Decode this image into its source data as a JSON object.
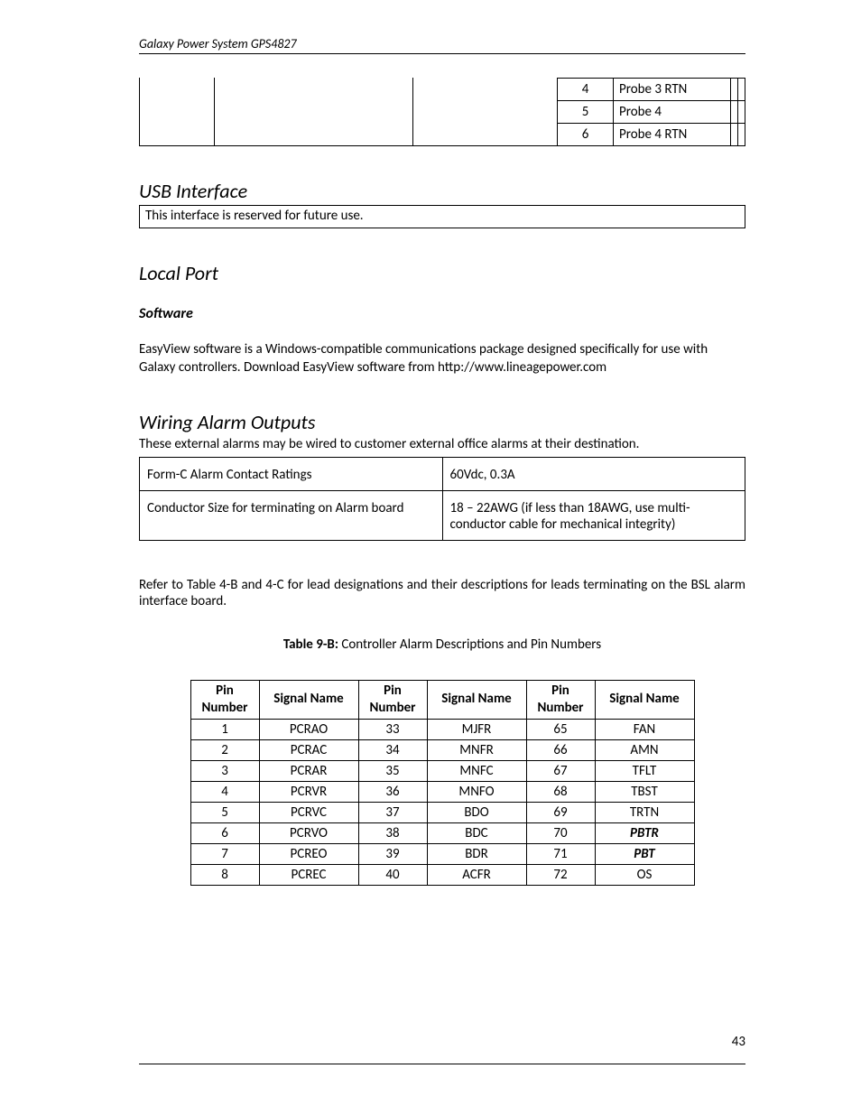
{
  "header": {
    "title": "Galaxy Power System GPS4827"
  },
  "page_number": "43",
  "probe_table": {
    "rows": [
      {
        "num": "4",
        "label": "Probe 3 RTN"
      },
      {
        "num": "5",
        "label": "Probe 4"
      },
      {
        "num": "6",
        "label": "Probe 4 RTN"
      }
    ]
  },
  "usb": {
    "heading": "USB Interface",
    "text": "This interface is reserved for future use."
  },
  "local_port": {
    "heading": "Local Port",
    "subheading": "Software",
    "body": "EasyView software is a Windows-compatible communications package designed specifically for use with Galaxy controllers. Download EasyView software from http://www.lineagepower.com"
  },
  "wiring": {
    "heading": "Wiring Alarm Outputs",
    "intro": "These external alarms may be wired to customer external office alarms at their destination.",
    "ratings": {
      "rows": [
        {
          "label": "Form-C Alarm Contact Ratings",
          "value": "60Vdc, 0.3A"
        },
        {
          "label": "Conductor Size for terminating on Alarm board",
          "value": "18 – 22AWG (if less than 18AWG, use multi-conductor cable for mechanical integrity)"
        }
      ]
    },
    "refer": "Refer to Table 4-B and 4-C for lead designations and their descriptions for leads terminating on the BSL alarm interface board."
  },
  "caption": {
    "bold": "Table 9-B:",
    "rest": " Controller Alarm Descriptions and Pin Numbers"
  },
  "pin_table": {
    "headers": [
      "Pin Number",
      "Signal Name",
      "Pin Number",
      "Signal Name",
      "Pin Number",
      "Signal Name"
    ],
    "rows": [
      [
        "1",
        "PCRAO",
        "33",
        "MJFR",
        "65",
        "FAN",
        false
      ],
      [
        "2",
        "PCRAC",
        "34",
        "MNFR",
        "66",
        "AMN",
        false
      ],
      [
        "3",
        "PCRAR",
        "35",
        "MNFC",
        "67",
        "TFLT",
        false
      ],
      [
        "4",
        "PCRVR",
        "36",
        "MNFO",
        "68",
        "TBST",
        false
      ],
      [
        "5",
        "PCRVC",
        "37",
        "BDO",
        "69",
        "TRTN",
        false
      ],
      [
        "6",
        "PCRVO",
        "38",
        "BDC",
        "70",
        "PBTR",
        true
      ],
      [
        "7",
        "PCREO",
        "39",
        "BDR",
        "71",
        "PBT",
        true
      ],
      [
        "8",
        "PCREC",
        "40",
        "ACFR",
        "72",
        "OS",
        false
      ]
    ]
  },
  "colors": {
    "text": "#000000",
    "background": "#ffffff",
    "rule": "#000000"
  }
}
